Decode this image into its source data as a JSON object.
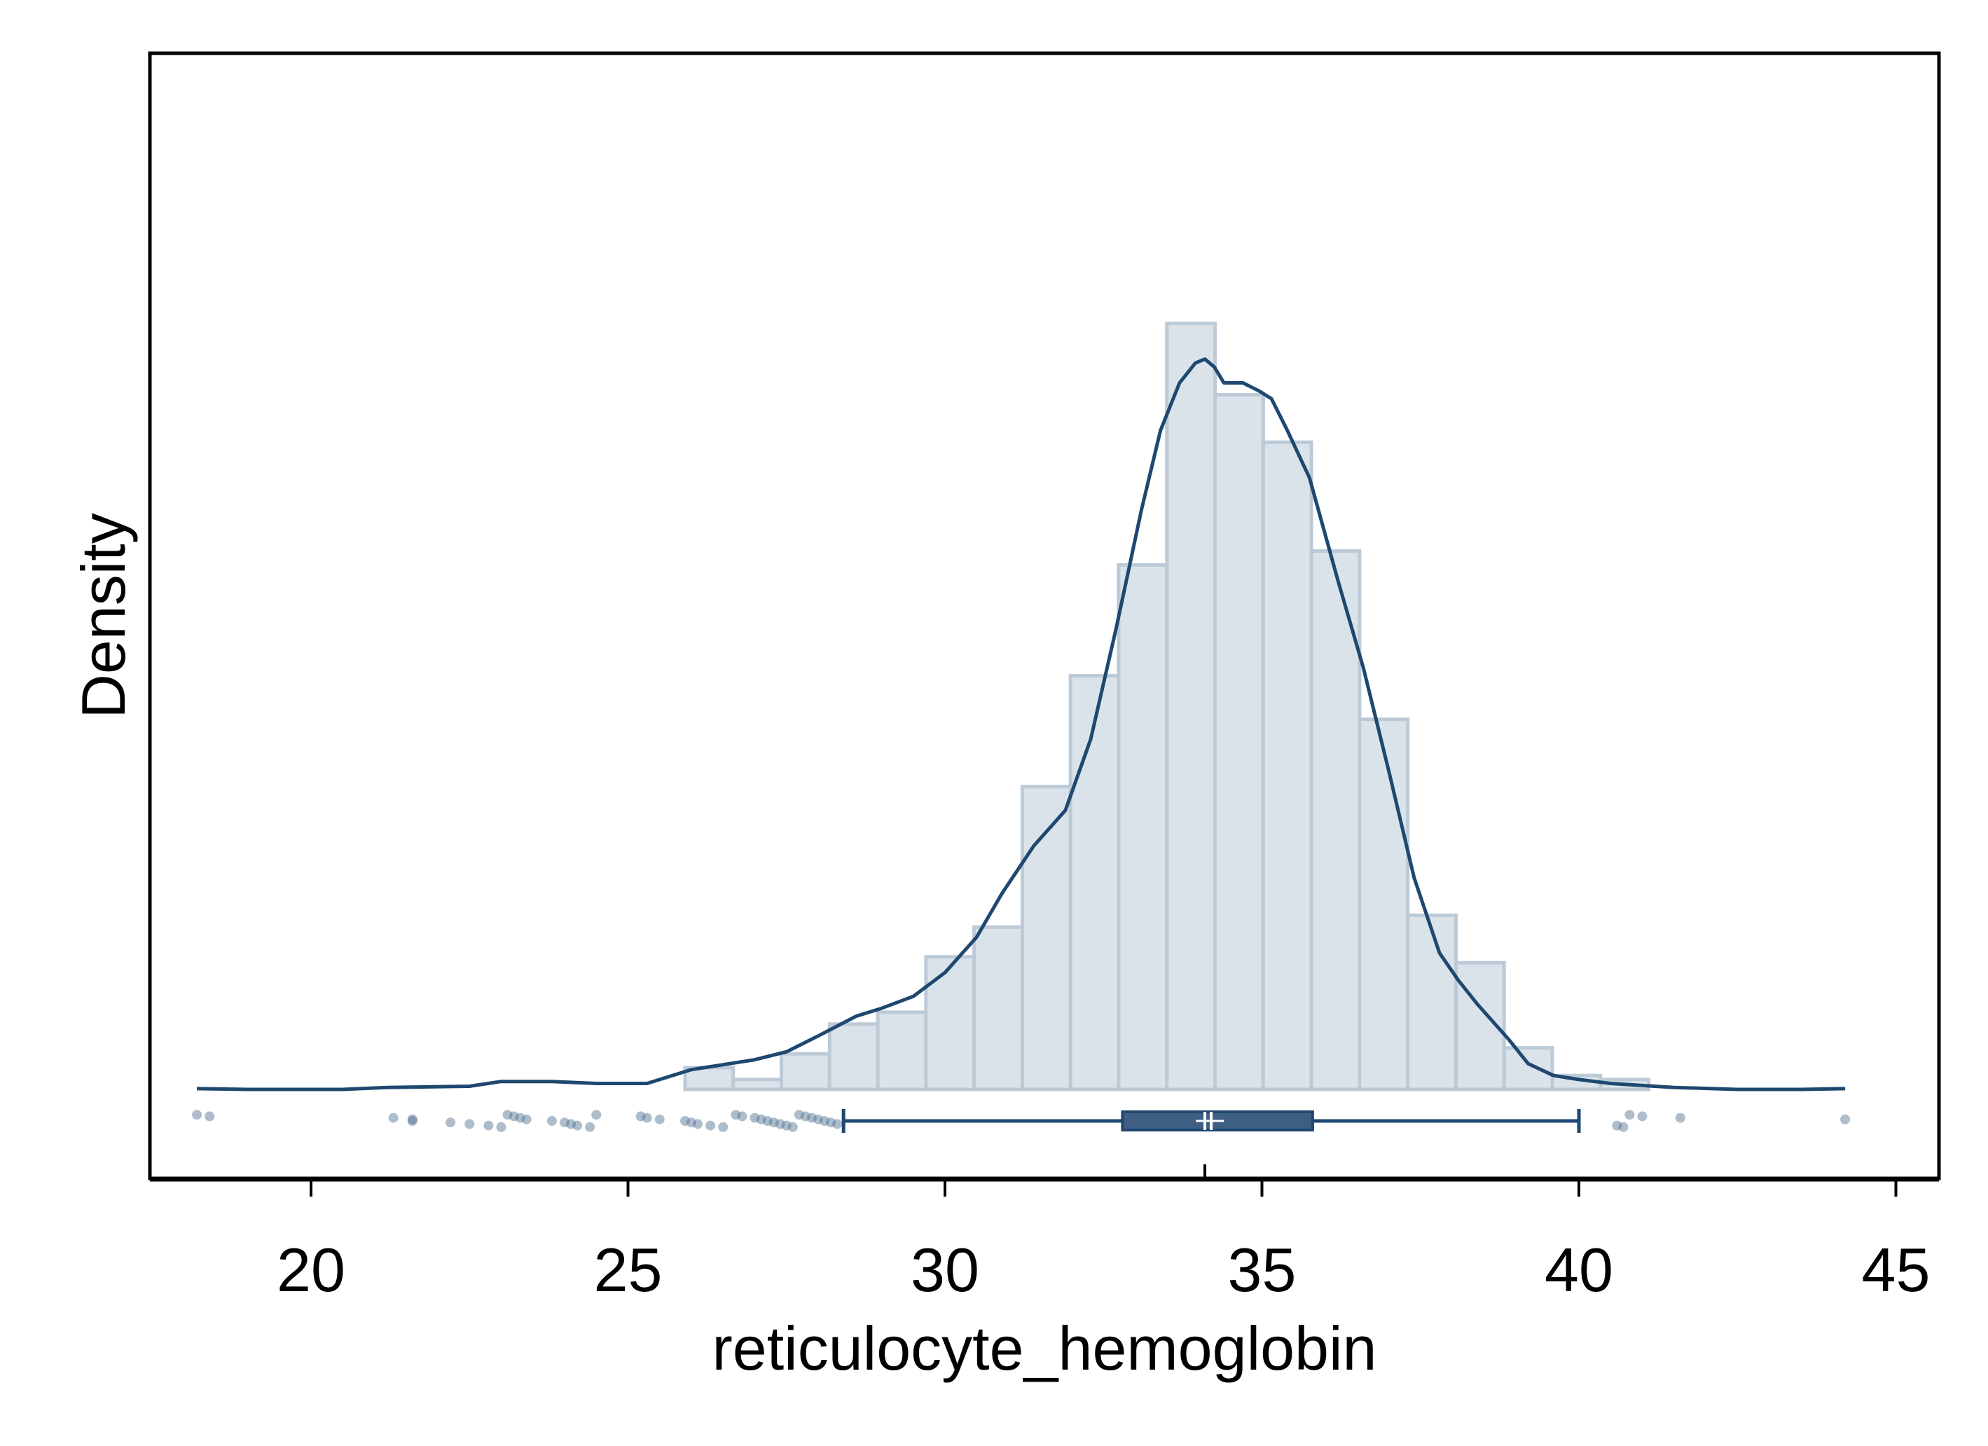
{
  "chart_data": {
    "type": "histogram",
    "xlabel": "reticulocyte_hemoglobin",
    "ylabel": "Density",
    "xlim": [
      17.5,
      45.8
    ],
    "xticks": [
      "20",
      "25",
      "30",
      "35",
      "40",
      "45"
    ],
    "ylim": [
      0,
      0.205
    ],
    "yticks_shown": false,
    "bin_width": 0.76,
    "histogram": {
      "bin_edges": [
        25.9,
        26.66,
        27.42,
        28.18,
        28.94,
        29.7,
        30.46,
        31.22,
        31.98,
        32.74,
        33.5,
        34.26,
        35.02,
        35.78,
        36.54,
        37.3,
        38.06,
        38.82,
        39.58,
        40.34,
        41.1
      ],
      "densities": [
        0.0055,
        0.0025,
        0.009,
        0.0165,
        0.0195,
        0.0335,
        0.041,
        0.0765,
        0.1045,
        0.1325,
        0.1935,
        0.1755,
        0.1635,
        0.136,
        0.0935,
        0.044,
        0.032,
        0.0105,
        0.0035,
        0.0025
      ]
    },
    "kde": {
      "x": [
        18.2,
        19.0,
        20.5,
        21.2,
        22.5,
        23.0,
        23.8,
        24.5,
        25.3,
        26.0,
        27.0,
        27.5,
        28.0,
        28.6,
        29.0,
        29.5,
        30.0,
        30.5,
        30.9,
        31.4,
        31.9,
        32.3,
        32.7,
        33.1,
        33.4,
        33.7,
        33.95,
        34.1,
        34.25,
        34.4,
        34.7,
        34.95,
        35.15,
        35.4,
        35.75,
        36.2,
        36.6,
        37.0,
        37.4,
        37.8,
        38.1,
        38.4,
        38.9,
        39.2,
        39.6,
        40.0,
        40.5,
        41.5,
        42.5,
        43.5,
        44.2
      ],
      "y": [
        0.0002,
        0.0,
        0.0,
        0.0005,
        0.0008,
        0.002,
        0.002,
        0.0015,
        0.0015,
        0.005,
        0.0075,
        0.0095,
        0.0135,
        0.0185,
        0.0205,
        0.0235,
        0.0295,
        0.0385,
        0.0495,
        0.0615,
        0.0705,
        0.0885,
        0.1165,
        0.1465,
        0.1665,
        0.1785,
        0.1835,
        0.1845,
        0.1825,
        0.1785,
        0.1785,
        0.1765,
        0.1745,
        0.1665,
        0.1545,
        0.1285,
        0.1065,
        0.0805,
        0.0535,
        0.0345,
        0.0275,
        0.0215,
        0.0125,
        0.0065,
        0.0035,
        0.0025,
        0.0015,
        0.0005,
        0.0,
        0.0,
        0.0002
      ]
    },
    "boxplot": {
      "whisker_low": 28.4,
      "q1": 32.8,
      "median": 34.2,
      "mean": 34.1,
      "q3": 35.8,
      "whisker_high": 40.0,
      "outliers": [
        18.2,
        18.4,
        21.3,
        21.6,
        21.6,
        22.2,
        22.5,
        22.8,
        23.0,
        23.1,
        23.2,
        23.3,
        23.4,
        23.8,
        24.0,
        24.1,
        24.2,
        24.4,
        24.5,
        25.2,
        25.3,
        25.5,
        25.9,
        26.0,
        26.1,
        26.3,
        26.5,
        26.7,
        26.8,
        27.0,
        27.1,
        27.2,
        27.3,
        27.4,
        27.5,
        27.6,
        27.7,
        27.8,
        27.9,
        28.0,
        28.1,
        28.2,
        28.3,
        40.6,
        40.7,
        40.8,
        41.0,
        41.6,
        44.2
      ]
    },
    "colors": {
      "bar_fill": "#dbe3ea",
      "bar_stroke": "#bccad7",
      "line": "#1e4870",
      "box_fill": "#3e5f82",
      "point": "#4b6c8e"
    },
    "grid": false
  }
}
